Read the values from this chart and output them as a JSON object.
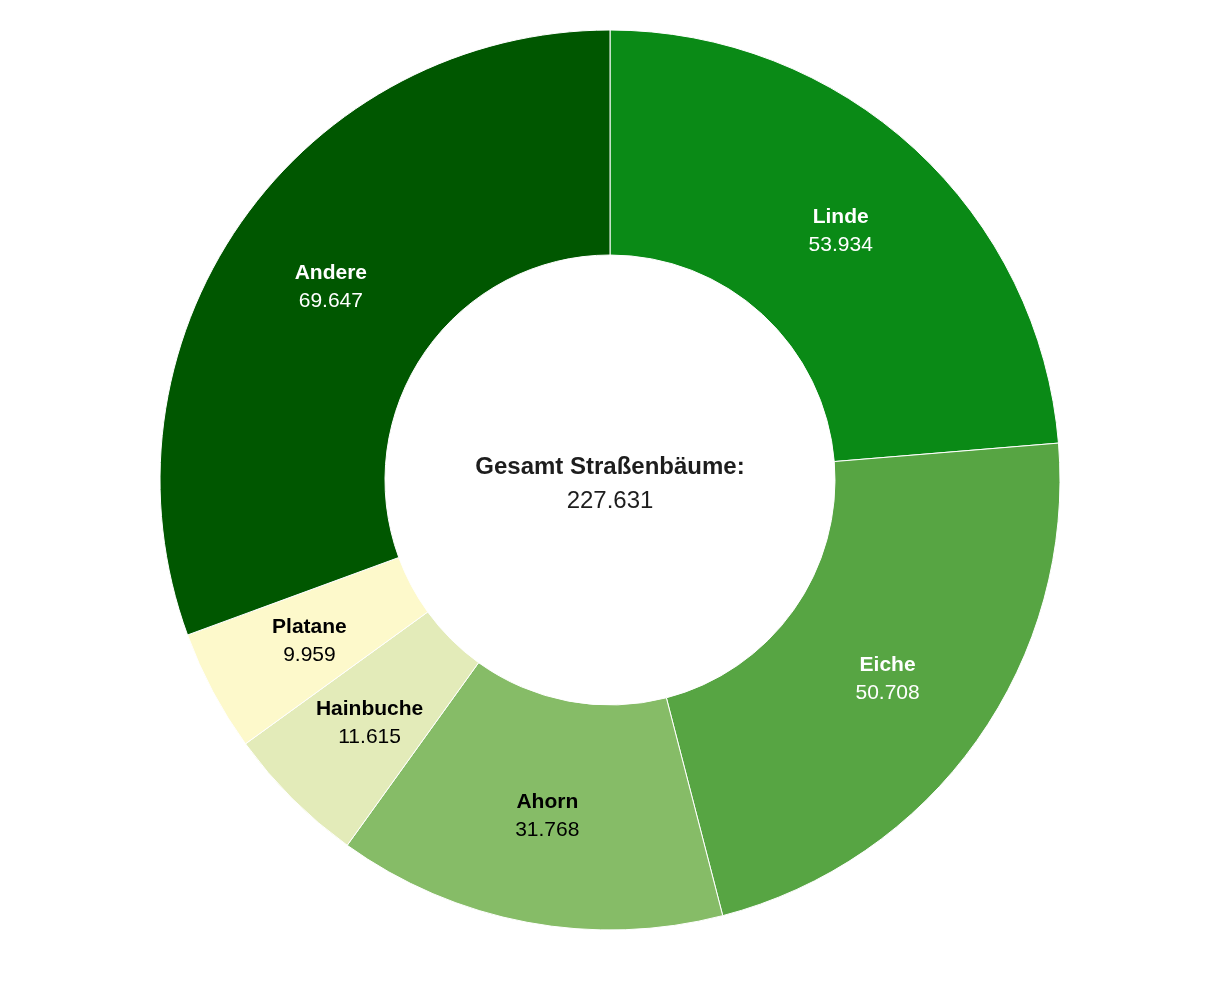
{
  "chart_data": {
    "type": "donut",
    "title": "Gesamt Straßenbäume:",
    "totals": [
      "227.631"
    ],
    "categories": [
      "Linde",
      "Eiche",
      "Ahorn",
      "Hainbuche",
      "Platane",
      "Andere"
    ],
    "values": [
      53934,
      50708,
      31768,
      11615,
      9959,
      69647
    ],
    "value_labels": [
      "53.934",
      "50.708",
      "31.768",
      "11.615",
      "9.959",
      "69.647"
    ],
    "colors": [
      "#0a8a16",
      "#57a543",
      "#86bc67",
      "#e3ebb9",
      "#fdf9cb",
      "#005700"
    ]
  }
}
